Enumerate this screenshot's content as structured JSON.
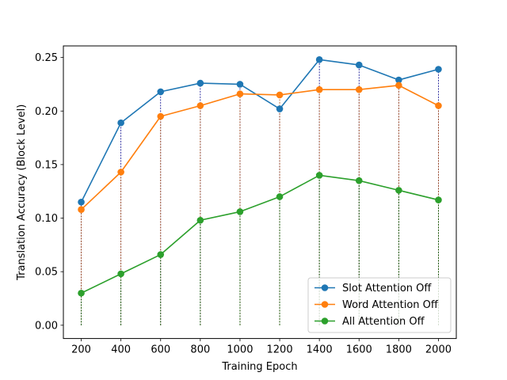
{
  "chart_data": {
    "type": "line",
    "title": "",
    "xlabel": "Training Epoch",
    "ylabel": "Translation Accuracy (Block Level)",
    "x": [
      200,
      400,
      600,
      800,
      1000,
      1200,
      1400,
      1600,
      1800,
      2000
    ],
    "xticks": [
      "200",
      "400",
      "600",
      "800",
      "1000",
      "1200",
      "1400",
      "1600",
      "1800",
      "2000"
    ],
    "yticks": [
      "0.00",
      "0.05",
      "0.10",
      "0.15",
      "0.20",
      "0.25"
    ],
    "xlim": [
      110,
      2090
    ],
    "ylim": [
      -0.0124,
      0.2608
    ],
    "grid": false,
    "legend_position": "lower-right",
    "drop_lines": true,
    "series": [
      {
        "name": "Slot Attention Off",
        "color": "#1f77b4",
        "drop_color": "#00008b",
        "values": [
          0.115,
          0.189,
          0.218,
          0.226,
          0.225,
          0.202,
          0.248,
          0.243,
          0.229,
          0.239
        ]
      },
      {
        "name": "Word Attention Off",
        "color": "#ff7f0e",
        "drop_color": "#b5500a",
        "values": [
          0.108,
          0.143,
          0.195,
          0.205,
          0.216,
          0.215,
          0.22,
          0.22,
          0.224,
          0.205
        ]
      },
      {
        "name": "All Attention Off",
        "color": "#2ca02c",
        "drop_color": "#006400",
        "values": [
          0.03,
          0.048,
          0.066,
          0.098,
          0.106,
          0.12,
          0.14,
          0.135,
          0.126,
          0.117
        ]
      }
    ]
  }
}
